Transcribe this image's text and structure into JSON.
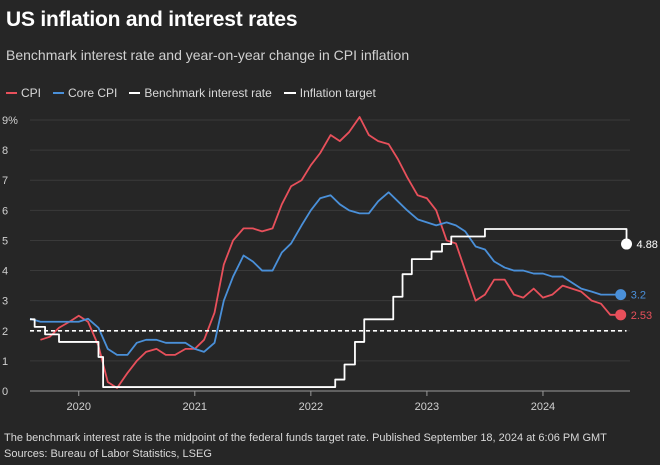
{
  "title": "US inflation and interest rates",
  "subtitle": "Benchmark interest rate and year-on-year change in CPI inflation",
  "footnote": "The benchmark interest rate is the midpoint of the federal funds target rate. Published September 18, 2024 at 6:06 PM GMT",
  "source": "Sources: Bureau of Labor Statistics, LSEG",
  "colors": {
    "cpi": "#e8505b",
    "core_cpi": "#4a90d9",
    "rate": "#ffffff",
    "target": "#ffffff",
    "background": "#262626",
    "grid": "#3a3a3a"
  },
  "chart_data": {
    "type": "line",
    "title": "US inflation and interest rates",
    "ylim": [
      0,
      9
    ],
    "yticks": [
      0,
      1,
      2,
      3,
      4,
      5,
      6,
      7,
      8,
      9
    ],
    "ytick_labels": [
      "0",
      "1",
      "2",
      "3",
      "4",
      "5",
      "6",
      "7",
      "8",
      "9%"
    ],
    "xlim": [
      2019.58,
      2024.75
    ],
    "xticks": [
      2020,
      2021,
      2022,
      2023,
      2024
    ],
    "xtick_labels": [
      "2020",
      "2021",
      "2022",
      "2023",
      "2024"
    ],
    "legend": [
      "CPI",
      "Core CPI",
      "Benchmark interest rate",
      "Inflation target"
    ],
    "legend_position": "top-left",
    "grid": "horizontal",
    "series": [
      {
        "name": "CPI",
        "color": "#e8505b",
        "end_label": "2.53",
        "x": [
          2019.67,
          2019.75,
          2019.83,
          2019.92,
          2020.0,
          2020.08,
          2020.17,
          2020.25,
          2020.33,
          2020.42,
          2020.5,
          2020.58,
          2020.67,
          2020.75,
          2020.83,
          2020.92,
          2021.0,
          2021.08,
          2021.17,
          2021.25,
          2021.33,
          2021.42,
          2021.5,
          2021.58,
          2021.67,
          2021.75,
          2021.83,
          2021.92,
          2022.0,
          2022.08,
          2022.17,
          2022.25,
          2022.33,
          2022.42,
          2022.5,
          2022.58,
          2022.67,
          2022.75,
          2022.83,
          2022.92,
          2023.0,
          2023.08,
          2023.17,
          2023.25,
          2023.33,
          2023.42,
          2023.5,
          2023.58,
          2023.67,
          2023.75,
          2023.83,
          2023.92,
          2024.0,
          2024.08,
          2024.17,
          2024.25,
          2024.33,
          2024.42,
          2024.5,
          2024.58,
          2024.67
        ],
        "values": [
          1.7,
          1.8,
          2.1,
          2.3,
          2.5,
          2.3,
          1.5,
          0.3,
          0.1,
          0.6,
          1.0,
          1.3,
          1.4,
          1.2,
          1.2,
          1.4,
          1.4,
          1.7,
          2.6,
          4.2,
          5.0,
          5.4,
          5.4,
          5.3,
          5.4,
          6.2,
          6.8,
          7.0,
          7.5,
          7.9,
          8.5,
          8.3,
          8.6,
          9.1,
          8.5,
          8.3,
          8.2,
          7.7,
          7.1,
          6.5,
          6.4,
          6.0,
          5.0,
          4.9,
          4.0,
          3.0,
          3.2,
          3.7,
          3.7,
          3.2,
          3.1,
          3.4,
          3.1,
          3.2,
          3.5,
          3.4,
          3.3,
          3.0,
          2.9,
          2.53,
          2.53
        ]
      },
      {
        "name": "Core CPI",
        "color": "#4a90d9",
        "end_label": "3.2",
        "x": [
          2019.58,
          2019.67,
          2019.75,
          2019.83,
          2019.92,
          2020.0,
          2020.08,
          2020.17,
          2020.25,
          2020.33,
          2020.42,
          2020.5,
          2020.58,
          2020.67,
          2020.75,
          2020.83,
          2020.92,
          2021.0,
          2021.08,
          2021.17,
          2021.25,
          2021.33,
          2021.42,
          2021.5,
          2021.58,
          2021.67,
          2021.75,
          2021.83,
          2021.92,
          2022.0,
          2022.08,
          2022.17,
          2022.25,
          2022.33,
          2022.42,
          2022.5,
          2022.58,
          2022.67,
          2022.75,
          2022.83,
          2022.92,
          2023.0,
          2023.08,
          2023.17,
          2023.25,
          2023.33,
          2023.42,
          2023.5,
          2023.58,
          2023.67,
          2023.75,
          2023.83,
          2023.92,
          2024.0,
          2024.08,
          2024.17,
          2024.25,
          2024.33,
          2024.42,
          2024.5,
          2024.58,
          2024.67
        ],
        "values": [
          2.4,
          2.3,
          2.3,
          2.3,
          2.3,
          2.3,
          2.4,
          2.1,
          1.4,
          1.2,
          1.2,
          1.6,
          1.7,
          1.7,
          1.6,
          1.6,
          1.6,
          1.4,
          1.3,
          1.6,
          3.0,
          3.8,
          4.5,
          4.3,
          4.0,
          4.0,
          4.6,
          4.9,
          5.5,
          6.0,
          6.4,
          6.5,
          6.2,
          6.0,
          5.9,
          5.9,
          6.3,
          6.6,
          6.3,
          6.0,
          5.7,
          5.6,
          5.5,
          5.6,
          5.5,
          5.3,
          4.8,
          4.7,
          4.3,
          4.1,
          4.0,
          4.0,
          3.9,
          3.9,
          3.8,
          3.8,
          3.6,
          3.4,
          3.3,
          3.2,
          3.2,
          3.2
        ]
      },
      {
        "name": "Benchmark interest rate",
        "color": "#ffffff",
        "end_label": "4.88",
        "step": true,
        "x": [
          2019.58,
          2019.62,
          2019.71,
          2019.83,
          2020.17,
          2020.21,
          2022.12,
          2022.21,
          2022.29,
          2022.38,
          2022.46,
          2022.54,
          2022.71,
          2022.79,
          2022.87,
          2022.96,
          2023.04,
          2023.13,
          2023.21,
          2023.38,
          2023.5,
          2024.7,
          2024.72
        ],
        "values": [
          2.38,
          2.13,
          1.88,
          1.63,
          1.13,
          0.13,
          0.13,
          0.38,
          0.88,
          1.63,
          2.38,
          2.38,
          3.13,
          3.88,
          4.38,
          4.38,
          4.63,
          4.88,
          5.13,
          5.13,
          5.38,
          5.38,
          4.88
        ]
      },
      {
        "name": "Inflation target",
        "color": "#ffffff",
        "dashed": true,
        "x": [
          2019.58,
          2024.72
        ],
        "values": [
          2,
          2
        ]
      }
    ]
  }
}
